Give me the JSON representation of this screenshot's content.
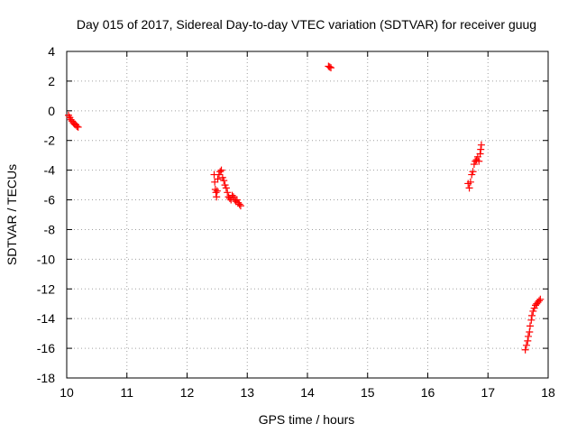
{
  "chart_data": {
    "type": "scatter",
    "title": "Day 015 of 2017, Sidereal Day-to-day VTEC variation (SDTVAR) for receiver guug",
    "xlabel": "GPS time / hours",
    "ylabel": "SDTVAR / TECUs",
    "xlim": [
      10,
      18
    ],
    "ylim": [
      -18,
      4
    ],
    "xticks": [
      "10",
      "11",
      "12",
      "13",
      "14",
      "15",
      "16",
      "17",
      "18"
    ],
    "yticks": [
      "4",
      "2",
      "0",
      "-2",
      "-4",
      "-6",
      "-8",
      "-10",
      "-12",
      "-14",
      "-16",
      "-18"
    ],
    "grid": true,
    "marker": "plus",
    "color": "#ff0000",
    "series": [
      {
        "points": [
          [
            10.03,
            -0.3
          ],
          [
            10.05,
            -0.45
          ],
          [
            10.07,
            -0.6
          ],
          [
            10.09,
            -0.7
          ],
          [
            10.11,
            -0.8
          ],
          [
            10.13,
            -0.9
          ],
          [
            10.15,
            -0.95
          ],
          [
            10.17,
            -1.05
          ],
          [
            10.19,
            -1.1
          ],
          [
            12.45,
            -4.3
          ],
          [
            12.46,
            -4.8
          ],
          [
            12.47,
            -5.3
          ],
          [
            12.48,
            -5.5
          ],
          [
            12.49,
            -5.8
          ],
          [
            12.5,
            -5.4
          ],
          [
            12.51,
            -4.6
          ],
          [
            12.53,
            -4.3
          ],
          [
            12.55,
            -4.1
          ],
          [
            12.57,
            -4.0
          ],
          [
            12.59,
            -4.5
          ],
          [
            12.61,
            -4.7
          ],
          [
            12.63,
            -5.0
          ],
          [
            12.65,
            -5.2
          ],
          [
            12.67,
            -5.5
          ],
          [
            12.69,
            -5.8
          ],
          [
            12.71,
            -5.9
          ],
          [
            12.73,
            -6.0
          ],
          [
            12.75,
            -5.7
          ],
          [
            12.77,
            -5.8
          ],
          [
            12.79,
            -6.0
          ],
          [
            12.81,
            -6.1
          ],
          [
            12.83,
            -6.0
          ],
          [
            12.85,
            -6.2
          ],
          [
            12.87,
            -6.3
          ],
          [
            12.89,
            -6.4
          ],
          [
            14.35,
            3.0
          ],
          [
            14.37,
            2.95
          ],
          [
            14.39,
            2.9
          ],
          [
            16.67,
            -4.9
          ],
          [
            16.69,
            -5.2
          ],
          [
            16.71,
            -4.8
          ],
          [
            16.73,
            -4.3
          ],
          [
            16.75,
            -4.1
          ],
          [
            16.77,
            -3.6
          ],
          [
            16.79,
            -3.4
          ],
          [
            16.81,
            -3.3
          ],
          [
            16.83,
            -3.1
          ],
          [
            16.85,
            -3.4
          ],
          [
            16.87,
            -2.9
          ],
          [
            16.88,
            -2.6
          ],
          [
            16.89,
            -2.3
          ],
          [
            17.62,
            -16.1
          ],
          [
            17.64,
            -15.8
          ],
          [
            17.66,
            -15.5
          ],
          [
            17.67,
            -15.2
          ],
          [
            17.69,
            -14.9
          ],
          [
            17.7,
            -14.5
          ],
          [
            17.72,
            -14.1
          ],
          [
            17.73,
            -13.8
          ],
          [
            17.75,
            -13.5
          ],
          [
            17.77,
            -13.3
          ],
          [
            17.79,
            -13.1
          ],
          [
            17.81,
            -13.0
          ],
          [
            17.83,
            -12.9
          ],
          [
            17.85,
            -12.8
          ],
          [
            17.87,
            -12.7
          ]
        ]
      }
    ]
  }
}
